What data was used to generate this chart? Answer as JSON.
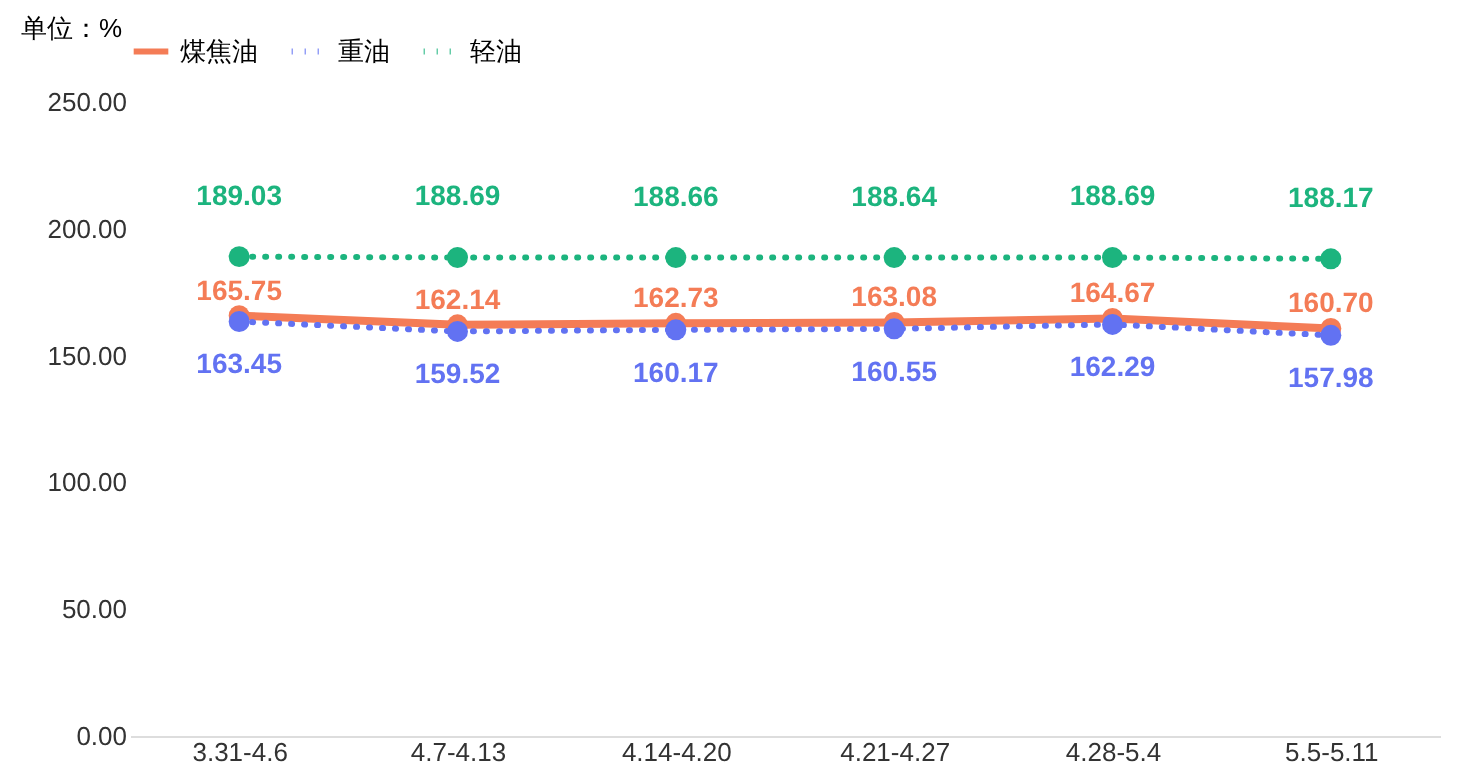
{
  "chart_data": {
    "type": "line",
    "ylabel": "单位：%",
    "categories": [
      "3.31-4.6",
      "4.7-4.13",
      "4.14-4.20",
      "4.21-4.27",
      "4.28-5.4",
      "5.5-5.11"
    ],
    "series": [
      {
        "name": "煤焦油",
        "color": "#f47c56",
        "line_style": "solid",
        "values": [
          165.75,
          162.14,
          162.73,
          163.08,
          164.67,
          160.7
        ],
        "value_labels": [
          "165.75",
          "162.14",
          "162.73",
          "163.08",
          "164.67",
          "160.70"
        ]
      },
      {
        "name": "重油",
        "color": "#6272f2",
        "line_style": "dotted",
        "values": [
          163.45,
          159.52,
          160.17,
          160.55,
          162.29,
          157.98
        ],
        "value_labels": [
          "163.45",
          "159.52",
          "160.17",
          "160.55",
          "162.29",
          "157.98"
        ]
      },
      {
        "name": "轻油",
        "color": "#1cb47e",
        "line_style": "dotted",
        "values": [
          189.03,
          188.69,
          188.66,
          188.64,
          188.69,
          188.17
        ],
        "value_labels": [
          "189.03",
          "188.69",
          "188.66",
          "188.64",
          "188.69",
          "188.17"
        ]
      }
    ],
    "ylim": [
      0,
      250
    ],
    "yticks": [
      {
        "value": 0,
        "label": "0.00"
      },
      {
        "value": 50,
        "label": "50.00"
      },
      {
        "value": 100,
        "label": "100.00"
      },
      {
        "value": 150,
        "label": "150.00"
      },
      {
        "value": 200,
        "label": "200.00"
      },
      {
        "value": 250,
        "label": "250.00"
      }
    ],
    "marker": "circle",
    "legend": "top",
    "grid": false
  }
}
